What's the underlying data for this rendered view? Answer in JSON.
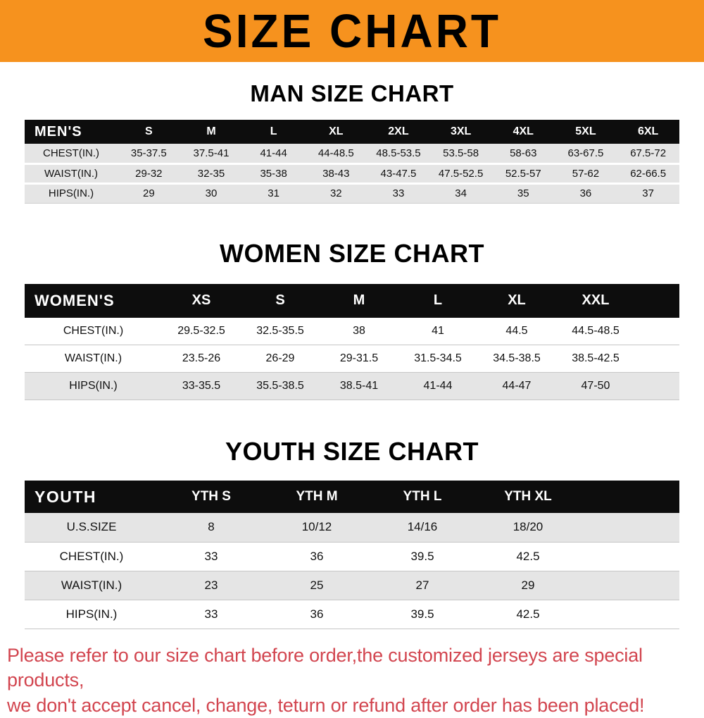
{
  "colors": {
    "banner_bg": "#f6921e",
    "header_bg": "#0d0d0d",
    "row_gray": "#e5e5e5",
    "footer_text": "#d2454f"
  },
  "banner": {
    "title": "SIZE CHART"
  },
  "sections": [
    {
      "heading": "MAN SIZE CHART",
      "table": {
        "label": "MEN'S",
        "columns": [
          "S",
          "M",
          "L",
          "XL",
          "2XL",
          "3XL",
          "4XL",
          "5XL",
          "6XL"
        ],
        "rows": [
          {
            "label": "CHEST(IN.)",
            "values": [
              "35-37.5",
              "37.5-41",
              "41-44",
              "44-48.5",
              "48.5-53.5",
              "53.5-58",
              "58-63",
              "63-67.5",
              "67.5-72"
            ]
          },
          {
            "label": "WAIST(IN.)",
            "values": [
              "29-32",
              "32-35",
              "35-38",
              "38-43",
              "43-47.5",
              "47.5-52.5",
              "52.5-57",
              "57-62",
              "62-66.5"
            ]
          },
          {
            "label": "HIPS(IN.)",
            "values": [
              "29",
              "30",
              "31",
              "32",
              "33",
              "34",
              "35",
              "36",
              "37"
            ]
          }
        ]
      }
    },
    {
      "heading": "WOMEN SIZE CHART",
      "table": {
        "label": "WOMEN'S",
        "columns": [
          "XS",
          "S",
          "M",
          "L",
          "XL",
          "XXL"
        ],
        "rows": [
          {
            "label": "CHEST(IN.)",
            "values": [
              "29.5-32.5",
              "32.5-35.5",
              "38",
              "41",
              "44.5",
              "44.5-48.5"
            ]
          },
          {
            "label": "WAIST(IN.)",
            "values": [
              "23.5-26",
              "26-29",
              "29-31.5",
              "31.5-34.5",
              "34.5-38.5",
              "38.5-42.5"
            ]
          },
          {
            "label": "HIPS(IN.)",
            "values": [
              "33-35.5",
              "35.5-38.5",
              "38.5-41",
              "41-44",
              "44-47",
              "47-50"
            ]
          }
        ]
      }
    },
    {
      "heading": "YOUTH SIZE CHART",
      "table": {
        "label": "YOUTH",
        "columns": [
          "YTH S",
          "YTH M",
          "YTH L",
          "YTH XL"
        ],
        "rows": [
          {
            "label": "U.S.SIZE",
            "values": [
              "8",
              "10/12",
              "14/16",
              "18/20"
            ]
          },
          {
            "label": "CHEST(IN.)",
            "values": [
              "33",
              "36",
              "39.5",
              "42.5"
            ]
          },
          {
            "label": "WAIST(IN.)",
            "values": [
              "23",
              "25",
              "27",
              "29"
            ]
          },
          {
            "label": "HIPS(IN.)",
            "values": [
              "33",
              "36",
              "39.5",
              "42.5"
            ]
          }
        ]
      }
    }
  ],
  "footer": {
    "line1": "Please refer to our size chart before order,the customized jerseys are special products,",
    "line2": "we don't accept cancel, change, teturn or refund after order has been placed!"
  }
}
